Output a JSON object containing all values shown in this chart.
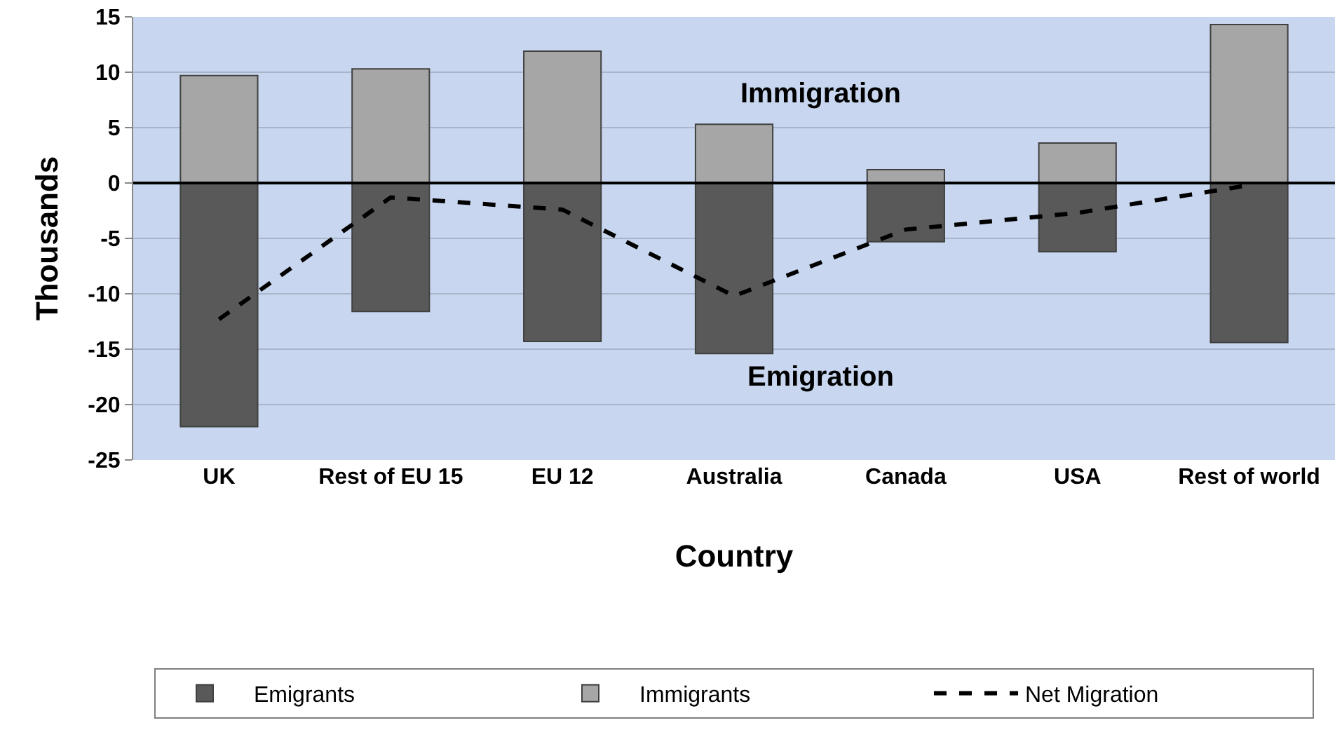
{
  "chart_data": {
    "type": "bar",
    "stacked": true,
    "xlabel": "Country",
    "ylabel": "Thousands",
    "categories": [
      "UK",
      "Rest of EU 15",
      "EU 12",
      "Australia",
      "Canada",
      "USA",
      "Rest of world"
    ],
    "series": [
      {
        "name": "Emigrants",
        "color": "#595959",
        "values": [
          -22,
          -11.6,
          -14.3,
          -15.4,
          -5.3,
          -6.2,
          -14.4
        ]
      },
      {
        "name": "Immigrants",
        "color": "#a6a6a6",
        "values": [
          9.7,
          10.3,
          11.9,
          5.3,
          1.2,
          3.6,
          14.3
        ]
      },
      {
        "name": "Net Migration",
        "type": "line",
        "color": "#000000",
        "line_style": "dashed",
        "marker": "none",
        "values": [
          -12.3,
          -1.3,
          -2.4,
          -10.2,
          -4.2,
          -2.7,
          -0.2
        ]
      }
    ],
    "annotations": [
      "Immigration",
      "Emigration"
    ],
    "ylim": [
      -25,
      15
    ],
    "yticks": [
      -25,
      -20,
      -15,
      -10,
      -5,
      0,
      5,
      10,
      15
    ],
    "ref_lines": [
      {
        "axis": "y",
        "value": 0,
        "color": "#000000"
      }
    ],
    "grid": "y",
    "legend": "bottom"
  }
}
